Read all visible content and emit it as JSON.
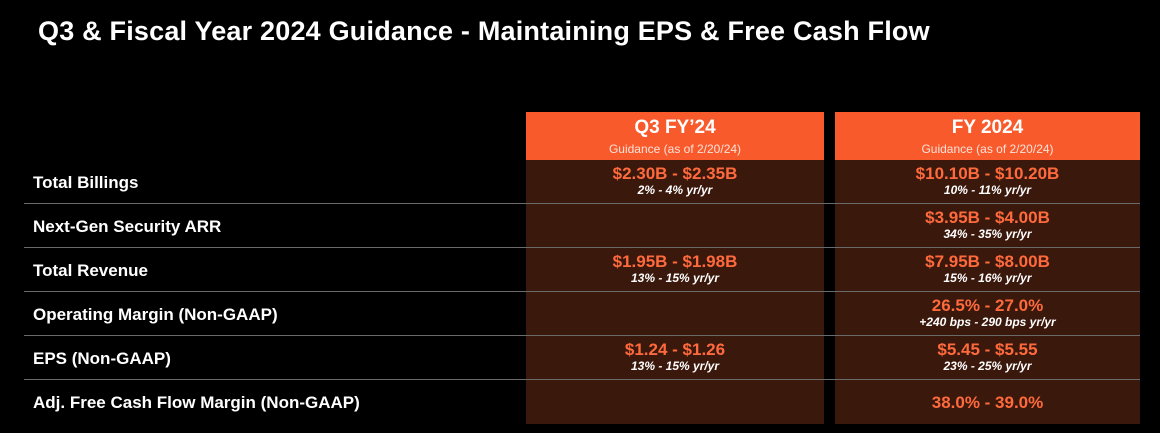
{
  "title": "Q3 & Fiscal Year 2024 Guidance - Maintaining EPS & Free Cash Flow",
  "colors": {
    "background": "#000000",
    "header_accent": "#f95a2c",
    "cell_background": "#3b180c",
    "value_text": "#ff6a3d"
  },
  "columns": [
    {
      "title": "Q3 FY’24",
      "subtitle": "Guidance (as of 2/20/24)"
    },
    {
      "title": "FY 2024",
      "subtitle": "Guidance (as of 2/20/24)"
    }
  ],
  "rows": [
    {
      "label": "Total Billings",
      "q3": {
        "value": "$2.30B - $2.35B",
        "growth": "2% - 4% yr/yr"
      },
      "fy": {
        "value": "$10.10B - $10.20B",
        "growth": "10% - 11% yr/yr"
      }
    },
    {
      "label": "Next-Gen Security ARR",
      "q3": {
        "value": "",
        "growth": ""
      },
      "fy": {
        "value": "$3.95B - $4.00B",
        "growth": "34% - 35% yr/yr"
      }
    },
    {
      "label": "Total Revenue",
      "q3": {
        "value": "$1.95B - $1.98B",
        "growth": "13% - 15% yr/yr"
      },
      "fy": {
        "value": "$7.95B - $8.00B",
        "growth": "15% - 16% yr/yr"
      }
    },
    {
      "label": "Operating Margin (Non-GAAP)",
      "q3": {
        "value": "",
        "growth": ""
      },
      "fy": {
        "value": "26.5% - 27.0%",
        "growth": "+240 bps - 290 bps yr/yr"
      }
    },
    {
      "label": "EPS (Non-GAAP)",
      "q3": {
        "value": "$1.24 - $1.26",
        "growth": "13% - 15% yr/yr"
      },
      "fy": {
        "value": "$5.45 - $5.55",
        "growth": "23% - 25% yr/yr"
      }
    },
    {
      "label": "Adj. Free Cash Flow Margin (Non-GAAP)",
      "q3": {
        "value": "",
        "growth": ""
      },
      "fy": {
        "value": "38.0% - 39.0%",
        "growth": ""
      }
    }
  ]
}
